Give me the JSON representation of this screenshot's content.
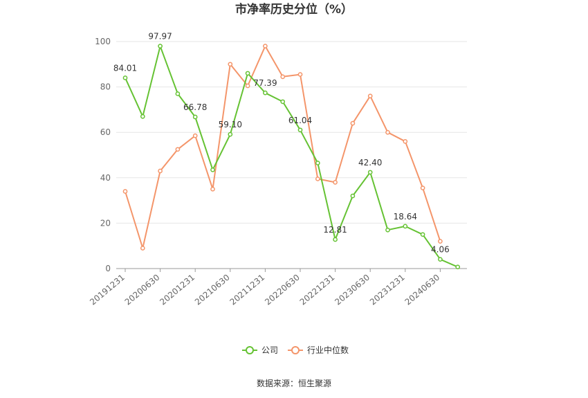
{
  "chart_data": {
    "type": "line",
    "title": "市净率历史分位（%）",
    "xlabel": "",
    "ylabel": "",
    "ylim": [
      0,
      100
    ],
    "yticks": [
      "0",
      "20",
      "40",
      "60",
      "80",
      "100"
    ],
    "grid": true,
    "legend_position": "bottom",
    "x": [
      "20191231",
      "20200331",
      "20200630",
      "20200930",
      "20201231",
      "20210331",
      "20210630",
      "20210930",
      "20211231",
      "20220331",
      "20220630",
      "20220930",
      "20221231",
      "20230331",
      "20230630",
      "20230930",
      "20231231",
      "20240331",
      "20240630",
      "20240930"
    ],
    "xtick_labels": [
      "20191231",
      "20200630",
      "20201231",
      "20210630",
      "20211231",
      "20220630",
      "20221231",
      "20230630",
      "20231231",
      "20240630"
    ],
    "series": [
      {
        "name": "公司",
        "color": "#65c233",
        "values": [
          84.01,
          67.0,
          97.97,
          77.0,
          66.78,
          43.5,
          59.1,
          86.0,
          77.39,
          73.5,
          61.04,
          46.5,
          12.81,
          32.0,
          42.4,
          17.0,
          18.64,
          15.0,
          4.06,
          0.7
        ],
        "labels": [
          "84.01",
          "",
          "97.97",
          "",
          "66.78",
          "",
          "59.10",
          "",
          "77.39",
          "",
          "61.04",
          "",
          "12.81",
          "",
          "42.40",
          "",
          "18.64",
          "",
          "4.06",
          ""
        ]
      },
      {
        "name": "行业中位数",
        "color": "#f4956a",
        "values": [
          34.0,
          9.0,
          43.0,
          52.5,
          58.5,
          35.0,
          90.0,
          80.5,
          98.0,
          84.5,
          85.5,
          39.5,
          38.0,
          64.0,
          76.0,
          60.0,
          56.0,
          35.5,
          12.0,
          null
        ],
        "labels": []
      }
    ]
  },
  "source": "数据来源：恒生聚源"
}
